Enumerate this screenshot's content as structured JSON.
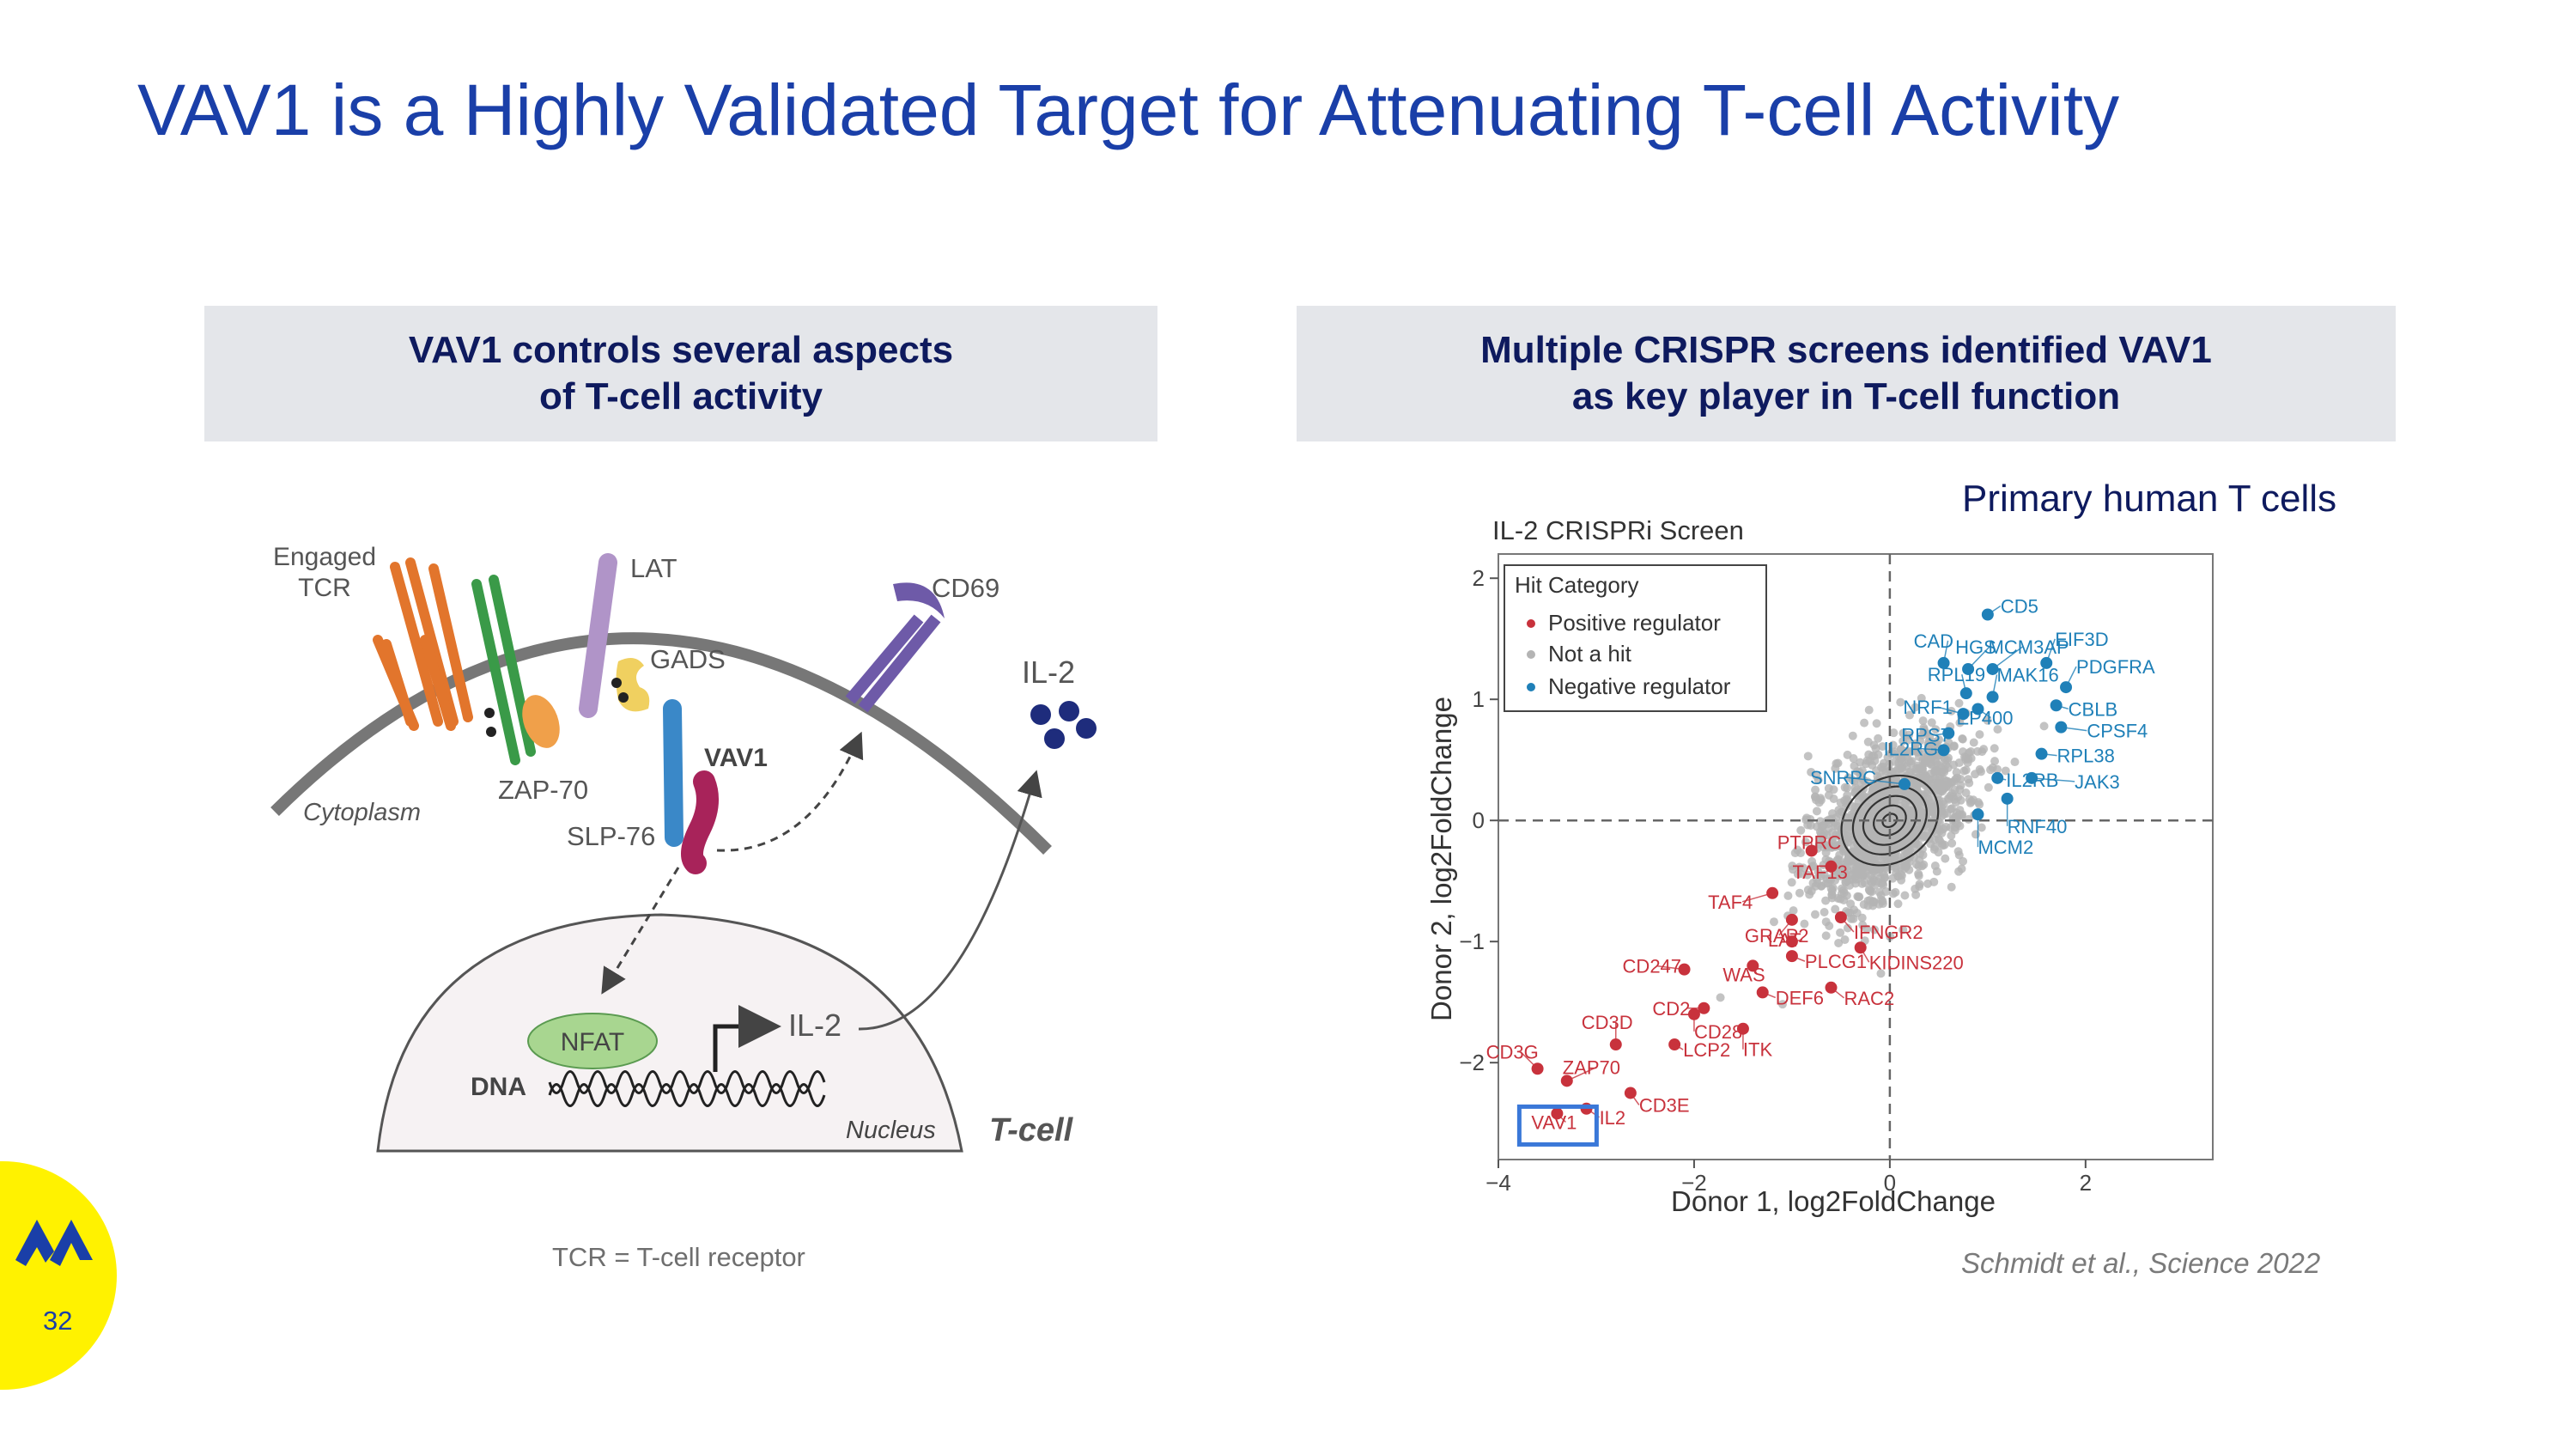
{
  "slide": {
    "title": "VAV1 is a Highly Validated Target for Attenuating T-cell Activity",
    "left_header": "VAV1 controls several aspects\nof T-cell activity",
    "right_header": "Multiple CRISPR screens identified VAV1\nas key player in T-cell function",
    "subtitle": "Primary human T cells",
    "footnote": "TCR = T-cell receptor",
    "citation": "Schmidt et al., Science 2022",
    "page_number": "32"
  },
  "diagram": {
    "engaged_tcr": "Engaged\nTCR",
    "lat": "LAT",
    "gads": "GADS",
    "cd69": "CD69",
    "il2_secreted": "IL-2",
    "zap70": "ZAP-70",
    "vav1": "VAV1",
    "slp76": "SLP-76",
    "cytoplasm": "Cytoplasm",
    "nfat": "NFAT",
    "il2_gene": "IL-2",
    "dna": "DNA",
    "nucleus": "Nucleus",
    "tcell": "T-cell"
  },
  "chart_data": {
    "type": "scatter",
    "title": "IL-2 CRISPRi Screen",
    "xlabel": "Donor 1, log2FoldChange",
    "ylabel": "Donor 2, log2FoldChange",
    "xlim": [
      -4,
      3.3
    ],
    "ylim": [
      -2.8,
      2.2
    ],
    "x_ticks": [
      -4,
      -2,
      0,
      2
    ],
    "x_tick_labels": [
      "−4",
      "−2",
      "0",
      "2"
    ],
    "y_ticks": [
      -2,
      -1,
      0,
      1,
      2
    ],
    "y_tick_labels": [
      "−2",
      "−1",
      "0",
      "1",
      "2"
    ],
    "legend": {
      "title": "Hit Category",
      "position": "top-left",
      "entries": [
        {
          "label": "Positive regulator",
          "color": "#c8323c"
        },
        {
          "label": "Not a hit",
          "color": "#b4b4b4"
        },
        {
          "label": "Negative regulator",
          "color": "#1f80b8"
        }
      ]
    },
    "highlight": "VAV1",
    "highlight_color": "#3a78d8",
    "positive_regulators": [
      {
        "label": "PTPRC",
        "x": -0.8,
        "y": -0.25
      },
      {
        "label": "TAF13",
        "x": -0.6,
        "y": -0.38
      },
      {
        "label": "TAF4",
        "x": -1.2,
        "y": -0.6
      },
      {
        "label": "GRAP2",
        "x": -1.0,
        "y": -0.82
      },
      {
        "label": "IFNGR2",
        "x": -0.5,
        "y": -0.8
      },
      {
        "label": "LAT",
        "x": -1.0,
        "y": -1.0
      },
      {
        "label": "PLCG1",
        "x": -1.0,
        "y": -1.12
      },
      {
        "label": "KIDINS220",
        "x": -0.3,
        "y": -1.05
      },
      {
        "label": "WAS",
        "x": -1.4,
        "y": -1.2
      },
      {
        "label": "DEF6",
        "x": -1.3,
        "y": -1.42
      },
      {
        "label": "RAC2",
        "x": -0.6,
        "y": -1.38
      },
      {
        "label": "CD247",
        "x": -2.1,
        "y": -1.23
      },
      {
        "label": "CD2",
        "x": -1.9,
        "y": -1.55
      },
      {
        "label": "CD28",
        "x": -2.0,
        "y": -1.6
      },
      {
        "label": "ITK",
        "x": -1.5,
        "y": -1.72
      },
      {
        "label": "CD3D",
        "x": -2.8,
        "y": -1.85
      },
      {
        "label": "LCP2",
        "x": -2.2,
        "y": -1.85
      },
      {
        "label": "CD3G",
        "x": -3.6,
        "y": -2.05
      },
      {
        "label": "ZAP70",
        "x": -3.3,
        "y": -2.15
      },
      {
        "label": "CD3E",
        "x": -2.65,
        "y": -2.25
      },
      {
        "label": "IL2",
        "x": -3.1,
        "y": -2.38
      },
      {
        "label": "VAV1",
        "x": -3.4,
        "y": -2.42
      }
    ],
    "negative_regulators": [
      {
        "label": "CD5",
        "x": 1.0,
        "y": 1.7
      },
      {
        "label": "CAD",
        "x": 0.55,
        "y": 1.3
      },
      {
        "label": "HGS",
        "x": 0.8,
        "y": 1.25
      },
      {
        "label": "MCM3AP",
        "x": 1.05,
        "y": 1.25
      },
      {
        "label": "EIF3D",
        "x": 1.6,
        "y": 1.3
      },
      {
        "label": "RPL19",
        "x": 0.78,
        "y": 1.05
      },
      {
        "label": "MAK16",
        "x": 1.05,
        "y": 1.02
      },
      {
        "label": "PDGFRA",
        "x": 1.8,
        "y": 1.1
      },
      {
        "label": "NRF1",
        "x": 0.75,
        "y": 0.88
      },
      {
        "label": "EP400",
        "x": 0.9,
        "y": 0.92
      },
      {
        "label": "CBLB",
        "x": 1.7,
        "y": 0.95
      },
      {
        "label": "RPS7",
        "x": 0.6,
        "y": 0.72
      },
      {
        "label": "CPSF4",
        "x": 1.75,
        "y": 0.77
      },
      {
        "label": "IL2RG",
        "x": 0.55,
        "y": 0.58
      },
      {
        "label": "RPL38",
        "x": 1.55,
        "y": 0.55
      },
      {
        "label": "IL2RB",
        "x": 1.1,
        "y": 0.35
      },
      {
        "label": "JAK3",
        "x": 1.45,
        "y": 0.35
      },
      {
        "label": "SNRPC",
        "x": 0.15,
        "y": 0.3
      },
      {
        "label": "RNF40",
        "x": 1.2,
        "y": 0.18
      },
      {
        "label": "MCM2",
        "x": 0.9,
        "y": 0.05
      }
    ],
    "not_hits": {
      "center": [
        0,
        0
      ],
      "spread": [
        0.9,
        0.55
      ],
      "correlation": 0.6
    }
  }
}
